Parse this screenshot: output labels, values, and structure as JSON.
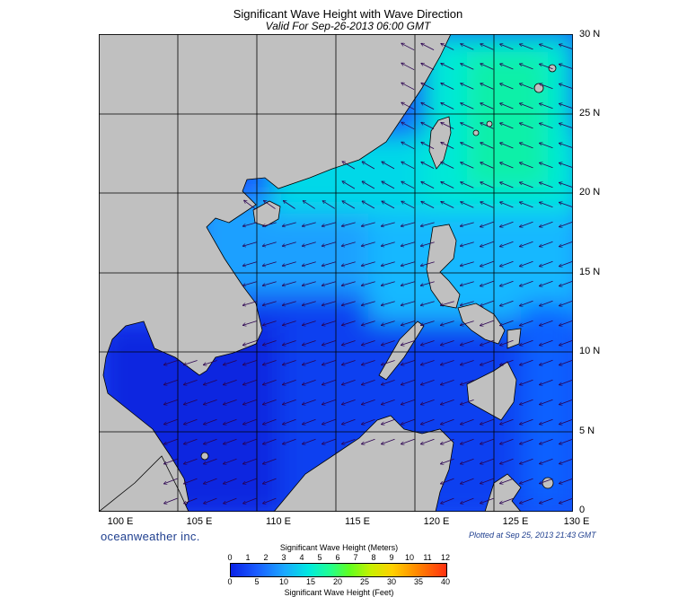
{
  "header": {
    "title": "Significant Wave Height with Wave Direction",
    "subtitle": "Valid For Sep-26-2013 06:00 GMT"
  },
  "map": {
    "lon_range": [
      100,
      130
    ],
    "lat_range": [
      0,
      30
    ],
    "lat_labels": [
      "30 N",
      "25 N",
      "20 N",
      "15 N",
      "10 N",
      "5 N",
      "0"
    ],
    "lon_labels": [
      "100 E",
      "105 E",
      "110 E",
      "115 E",
      "120 E",
      "125 E",
      "130 E"
    ],
    "land_color": "#c0c0c0",
    "grid": true
  },
  "footer": {
    "brand": "oceanweather inc.",
    "plotted": "Plotted at Sep 25, 2013 21:43 GMT"
  },
  "colorbar": {
    "title_meters": "Significant Wave Height (Meters)",
    "title_feet": "Significant Wave Height (Feet)",
    "meter_ticks": [
      "0",
      "1",
      "2",
      "3",
      "4",
      "5",
      "6",
      "7",
      "8",
      "9",
      "10",
      "11",
      "12"
    ],
    "feet_ticks": [
      "0",
      "5",
      "10",
      "15",
      "20",
      "25",
      "30",
      "35",
      "40"
    ]
  }
}
